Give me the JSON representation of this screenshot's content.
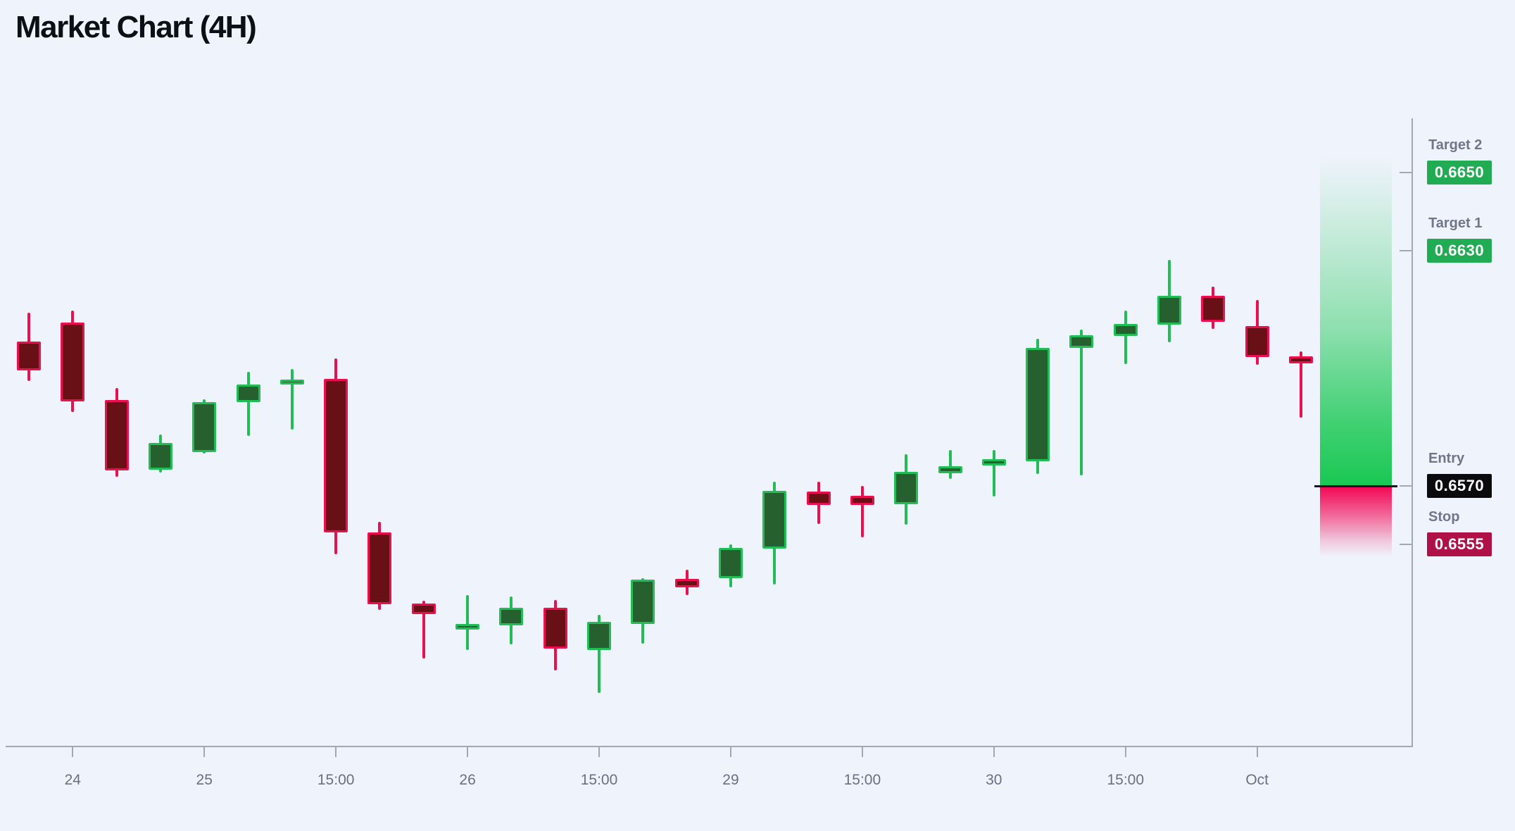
{
  "title": "Market Chart (4H)",
  "colors": {
    "background": "#eff3fb",
    "title_text": "#0c0f14",
    "axis": "#a3a8b5",
    "axis_label_text": "#6a7084",
    "level_label_text": "#70768a",
    "candle_up_border": "#23bd58",
    "candle_up_fill": "#27602f",
    "candle_down_border": "#ea0f4f",
    "candle_down_fill": "#690f16",
    "zone_green": "#19c853",
    "zone_red": "#f30a56",
    "entry_line": "#14171c",
    "badge_target": "#21ab52",
    "badge_entry": "#0b0b0d",
    "badge_stop": "#b01048"
  },
  "levels": [
    {
      "id": "target-2",
      "label": "Target 2",
      "value": "0.6650",
      "price": 0.665,
      "badge_color": "#21ab52"
    },
    {
      "id": "target-1",
      "label": "Target 1",
      "value": "0.6630",
      "price": 0.663,
      "badge_color": "#21ab52"
    },
    {
      "id": "entry",
      "label": "Entry",
      "value": "0.6570",
      "price": 0.657,
      "badge_color": "#0b0b0d"
    },
    {
      "id": "stop",
      "label": "Stop",
      "value": "0.6555",
      "price": 0.6555,
      "badge_color": "#b01048"
    }
  ],
  "chart_data": {
    "type": "candlestick",
    "title": "Market Chart (4H)",
    "timeframe": "4H",
    "grid": false,
    "price_range_visible": [
      0.6517,
      0.665
    ],
    "x_ticks": [
      {
        "label": "24",
        "candle_index": 1
      },
      {
        "label": "25",
        "candle_index": 4
      },
      {
        "label": "15:00",
        "candle_index": 7
      },
      {
        "label": "26",
        "candle_index": 10
      },
      {
        "label": "15:00",
        "candle_index": 13
      },
      {
        "label": "29",
        "candle_index": 16
      },
      {
        "label": "15:00",
        "candle_index": 19
      },
      {
        "label": "30",
        "candle_index": 22
      },
      {
        "label": "15:00",
        "candle_index": 25
      },
      {
        "label": "Oct",
        "candle_index": 28
      }
    ],
    "candles": [
      {
        "o": 0.66069,
        "h": 0.66143,
        "l": 0.65968,
        "c": 0.65995,
        "dir": "down"
      },
      {
        "o": 0.66117,
        "h": 0.66148,
        "l": 0.65889,
        "c": 0.65916,
        "dir": "down"
      },
      {
        "o": 0.6592,
        "h": 0.6595,
        "l": 0.65723,
        "c": 0.6574,
        "dir": "down"
      },
      {
        "o": 0.65741,
        "h": 0.65831,
        "l": 0.65735,
        "c": 0.6581,
        "dir": "up"
      },
      {
        "o": 0.65786,
        "h": 0.65921,
        "l": 0.65783,
        "c": 0.65914,
        "dir": "up"
      },
      {
        "o": 0.65914,
        "h": 0.65992,
        "l": 0.65828,
        "c": 0.65959,
        "dir": "up"
      },
      {
        "o": 0.65959,
        "h": 0.65999,
        "l": 0.65844,
        "c": 0.65972,
        "dir": "up"
      },
      {
        "o": 0.65974,
        "h": 0.66026,
        "l": 0.65525,
        "c": 0.65581,
        "dir": "down"
      },
      {
        "o": 0.65581,
        "h": 0.65608,
        "l": 0.65383,
        "c": 0.65398,
        "dir": "down"
      },
      {
        "o": 0.65399,
        "h": 0.65407,
        "l": 0.65259,
        "c": 0.65372,
        "dir": "down"
      },
      {
        "o": 0.65333,
        "h": 0.65421,
        "l": 0.65281,
        "c": 0.65347,
        "dir": "up"
      },
      {
        "o": 0.65344,
        "h": 0.65417,
        "l": 0.65295,
        "c": 0.65389,
        "dir": "up"
      },
      {
        "o": 0.65389,
        "h": 0.65408,
        "l": 0.65228,
        "c": 0.65284,
        "dir": "down"
      },
      {
        "o": 0.65281,
        "h": 0.65371,
        "l": 0.65171,
        "c": 0.65353,
        "dir": "up"
      },
      {
        "o": 0.65347,
        "h": 0.65464,
        "l": 0.65297,
        "c": 0.6546,
        "dir": "up"
      },
      {
        "o": 0.65462,
        "h": 0.65486,
        "l": 0.65421,
        "c": 0.65441,
        "dir": "down"
      },
      {
        "o": 0.65464,
        "h": 0.65551,
        "l": 0.65441,
        "c": 0.65542,
        "dir": "up"
      },
      {
        "o": 0.6554,
        "h": 0.65711,
        "l": 0.65448,
        "c": 0.65687,
        "dir": "up"
      },
      {
        "o": 0.65686,
        "h": 0.65711,
        "l": 0.65603,
        "c": 0.65652,
        "dir": "down"
      },
      {
        "o": 0.65675,
        "h": 0.657,
        "l": 0.65569,
        "c": 0.65651,
        "dir": "down"
      },
      {
        "o": 0.65653,
        "h": 0.65781,
        "l": 0.65601,
        "c": 0.65736,
        "dir": "up"
      },
      {
        "o": 0.65732,
        "h": 0.65792,
        "l": 0.65718,
        "c": 0.6575,
        "dir": "up"
      },
      {
        "o": 0.65752,
        "h": 0.65792,
        "l": 0.65673,
        "c": 0.65768,
        "dir": "up"
      },
      {
        "o": 0.65763,
        "h": 0.66076,
        "l": 0.65731,
        "c": 0.66053,
        "dir": "up"
      },
      {
        "o": 0.66053,
        "h": 0.661,
        "l": 0.65727,
        "c": 0.66085,
        "dir": "up"
      },
      {
        "o": 0.66083,
        "h": 0.66148,
        "l": 0.66011,
        "c": 0.66114,
        "dir": "up"
      },
      {
        "o": 0.66112,
        "h": 0.66278,
        "l": 0.66067,
        "c": 0.66186,
        "dir": "up"
      },
      {
        "o": 0.66186,
        "h": 0.66209,
        "l": 0.66101,
        "c": 0.66119,
        "dir": "down"
      },
      {
        "o": 0.66109,
        "h": 0.66175,
        "l": 0.6601,
        "c": 0.66029,
        "dir": "down"
      },
      {
        "o": 0.66031,
        "h": 0.66044,
        "l": 0.65875,
        "c": 0.66013,
        "dir": "down"
      }
    ],
    "annotations": {
      "target_2": 0.665,
      "target_1": 0.663,
      "entry": 0.657,
      "stop": 0.6555,
      "reward_zone": "green gradient from entry up toward targets",
      "risk_zone": "red gradient from entry down past stop"
    },
    "legend": "none"
  }
}
